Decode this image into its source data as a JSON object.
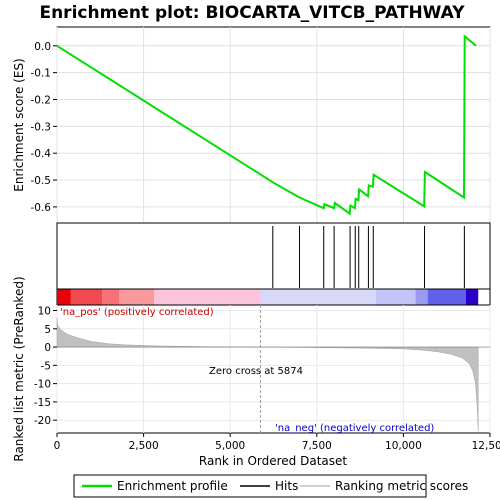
{
  "chart_data": {
    "type": "line",
    "title": "Enrichment plot: BIOCARTA_VITCB_PATHWAY",
    "colors": {
      "enrichment_line": "#00e000",
      "hits": "#000000",
      "metric_fill": "#c0c0c0",
      "pos_text": "#cc0000",
      "neg_text": "#0000cc"
    },
    "top_panel": {
      "ylabel": "Enrichment score (ES)",
      "ylim": [
        -0.66,
        0.07
      ],
      "yticks": [
        0.0,
        -0.1,
        -0.2,
        -0.3,
        -0.4,
        -0.5,
        -0.6
      ],
      "ytick_labels": [
        "0.0",
        "-0.1",
        "-0.2",
        "-0.3",
        "-0.4",
        "-0.5",
        "-0.6"
      ],
      "grid": true,
      "series": [
        {
          "name": "Enrichment profile",
          "x": [
            0,
            6250,
            7000,
            7700,
            7720,
            8000,
            8020,
            8450,
            8470,
            8600,
            8620,
            8700,
            8720,
            8980,
            9000,
            9120,
            9140,
            10600,
            10620,
            11750,
            11770,
            12100
          ],
          "y": [
            0.0,
            -0.51,
            -0.565,
            -0.605,
            -0.59,
            -0.605,
            -0.585,
            -0.625,
            -0.595,
            -0.605,
            -0.57,
            -0.575,
            -0.535,
            -0.56,
            -0.52,
            -0.525,
            -0.48,
            -0.598,
            -0.47,
            -0.565,
            0.035,
            0.0
          ]
        }
      ]
    },
    "hits": [
      6230,
      7000,
      7700,
      8000,
      8460,
      8610,
      8710,
      8990,
      9130,
      10610,
      11760
    ],
    "bottom_panel": {
      "ylabel": "Ranked list metric (PreRanked)",
      "xlabel": "Rank in Ordered Dataset",
      "xlim": [
        0,
        12500
      ],
      "xticks": [
        0,
        2500,
        5000,
        7500,
        10000,
        12500
      ],
      "xtick_labels": [
        "0",
        "2,500",
        "5,000",
        "7,500",
        "10,000",
        "12,500"
      ],
      "ylim": [
        -23.5,
        11.5
      ],
      "yticks": [
        10,
        5,
        0,
        -5,
        -10,
        -15,
        -20
      ],
      "ytick_labels": [
        "10",
        "5",
        "0",
        "-5",
        "-10",
        "-15",
        "-20"
      ],
      "metric_x": [
        0,
        20,
        100,
        300,
        600,
        1000,
        1500,
        2000,
        3000,
        4000,
        5874,
        7000,
        8000,
        9000,
        10000,
        10500,
        11000,
        11400,
        11700,
        11900,
        12000,
        12080,
        12130,
        12160
      ],
      "metric_y": [
        8.0,
        6.0,
        4.8,
        3.5,
        2.5,
        1.5,
        0.9,
        0.6,
        0.3,
        0.15,
        0.0,
        -0.1,
        -0.2,
        -0.3,
        -0.5,
        -0.8,
        -1.3,
        -2.0,
        -3.0,
        -4.5,
        -6.5,
        -10.0,
        -16.0,
        -23.0
      ],
      "zero_cross_label": "Zero cross at 5874",
      "zero_cross_x": 5874,
      "pos_label": "'na_pos' (positively correlated)",
      "neg_label": "'na_neg' (negatively correlated)"
    },
    "legend": [
      "Enrichment profile",
      "Hits",
      "Ranking metric scores"
    ],
    "colorbar": [
      {
        "from": 0,
        "to": 400,
        "color": "#e8000a"
      },
      {
        "from": 400,
        "to": 1300,
        "color": "#f04a50"
      },
      {
        "from": 1300,
        "to": 1800,
        "color": "#f77278"
      },
      {
        "from": 1800,
        "to": 2800,
        "color": "#fa9a9a"
      },
      {
        "from": 2800,
        "to": 5874,
        "color": "#fbc4dc"
      },
      {
        "from": 5874,
        "to": 9200,
        "color": "#d8d8f8"
      },
      {
        "from": 9200,
        "to": 10350,
        "color": "#c4c4f8"
      },
      {
        "from": 10350,
        "to": 10700,
        "color": "#9a9af0"
      },
      {
        "from": 10700,
        "to": 11800,
        "color": "#6060e8"
      },
      {
        "from": 11800,
        "to": 12160,
        "color": "#2a00c8"
      }
    ]
  }
}
